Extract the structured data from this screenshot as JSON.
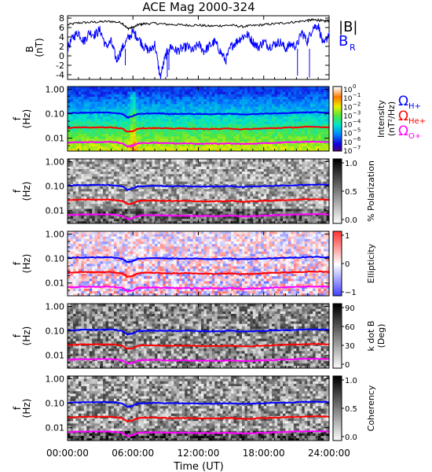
{
  "title": "ACE Mag 2000-324",
  "xlabel": "Time (UT)",
  "xticks": [
    "00:00:00",
    "06:00:00",
    "12:00:00",
    "18:00:00",
    "24:00:00"
  ],
  "colors": {
    "black": "#000000",
    "blue": "#0000ff",
    "red": "#ff0000",
    "magenta": "#ff00ff"
  },
  "chart_data": [
    {
      "type": "line",
      "panel": "field",
      "ylabel_main": "B",
      "ylabel_unit": "(nT)",
      "ylim": [
        -5,
        8.5
      ],
      "yticks": [
        "-4",
        "-2",
        "0",
        "2",
        "4",
        "6",
        "8"
      ],
      "xlim_hours": [
        0,
        24
      ],
      "legend": [
        "|B|",
        "B",
        "R"
      ],
      "series": [
        {
          "name": "|B|",
          "color": "#000000",
          "x": [
            0,
            1,
            2,
            3,
            4,
            5,
            5.5,
            6,
            6.5,
            7,
            8,
            9,
            10,
            11,
            12,
            13,
            14,
            15,
            16,
            17,
            18,
            19,
            20,
            21,
            22,
            22.5,
            23,
            23.5,
            24
          ],
          "y": [
            6.6,
            7.0,
            7.1,
            7.2,
            7.3,
            7.0,
            5.8,
            6.0,
            6.6,
            6.8,
            6.9,
            6.7,
            6.6,
            6.5,
            6.5,
            6.3,
            6.4,
            6.5,
            6.2,
            6.4,
            6.6,
            6.8,
            7.0,
            7.2,
            7.5,
            7.6,
            7.6,
            7.3,
            7.5
          ]
        },
        {
          "name": "B_R",
          "color": "#0000ff",
          "x": [
            0,
            0.5,
            1,
            1.5,
            2,
            2.5,
            3,
            3.5,
            4,
            4.5,
            5,
            5.5,
            6,
            6.5,
            7,
            7.5,
            8,
            8.5,
            9,
            9.5,
            10,
            10.5,
            11,
            11.5,
            12,
            12.5,
            13,
            13.5,
            14,
            14.5,
            15,
            15.5,
            16,
            16.5,
            17,
            17.5,
            18,
            18.5,
            19,
            19.5,
            20,
            20.5,
            21,
            21.5,
            22,
            22.5,
            23,
            23.5,
            24
          ],
          "y": [
            1.5,
            4,
            5,
            3,
            5,
            4.5,
            5.5,
            2,
            3,
            -1,
            1.5,
            3.5,
            5,
            3.8,
            2,
            1,
            2.5,
            -4.5,
            0,
            2,
            1,
            1.5,
            2,
            1,
            2.5,
            1,
            2,
            3,
            1,
            -1,
            2,
            3,
            4,
            4.5,
            3,
            1.8,
            3,
            2,
            2.5,
            3,
            1.5,
            2.5,
            2,
            5,
            3,
            6,
            6.5,
            2,
            5
          ]
        }
      ]
    },
    {
      "type": "heatmap",
      "panel": "intensity",
      "ylabel_main": "f",
      "ylabel_unit": "(Hz)",
      "yticks": [
        "1.00",
        "0.10",
        "0.01"
      ],
      "colorbar_label_1": "Intensity",
      "colorbar_label_2": "(nT²/Hz)",
      "colorbar_ticks_base": [
        "10",
        "10",
        "10",
        "10",
        "10",
        "10",
        "10",
        "10"
      ],
      "colorbar_ticks_exp": [
        "0",
        "−1",
        "−2",
        "−3",
        "−4",
        "−5",
        "−6",
        "−7"
      ],
      "legend": [
        {
          "text": "Ω",
          "sub": "H+",
          "color": "#0000ff"
        },
        {
          "text": "Ω",
          "sub": "He+",
          "color": "#ff0000"
        },
        {
          "text": "Ω",
          "sub": "O+",
          "color": "#ff00ff"
        }
      ]
    },
    {
      "type": "heatmap",
      "panel": "polarization",
      "ylabel_main": "f",
      "ylabel_unit": "(Hz)",
      "yticks": [
        "1.00",
        "0.10",
        "0.01"
      ],
      "colorbar_label_1": "% Polarization",
      "colorbar_ticks": [
        "1.0",
        "0.5",
        "0.0"
      ]
    },
    {
      "type": "heatmap",
      "panel": "ellipticity",
      "ylabel_main": "f",
      "ylabel_unit": "(Hz)",
      "yticks": [
        "1.00",
        "0.10",
        "0.01"
      ],
      "colorbar_label_1": "Ellipticity",
      "colorbar_ticks": [
        "1",
        "0",
        "−1"
      ]
    },
    {
      "type": "heatmap",
      "panel": "kdotb",
      "ylabel_main": "f",
      "ylabel_unit": "(Hz)",
      "yticks": [
        "1.00",
        "0.10",
        "0.01"
      ],
      "colorbar_label_1": "k dot B",
      "colorbar_label_2": "(Deg)",
      "colorbar_ticks": [
        "90",
        "60",
        "30",
        "0"
      ]
    },
    {
      "type": "heatmap",
      "panel": "coherency",
      "ylabel_main": "f",
      "ylabel_unit": "(Hz)",
      "yticks": [
        "1.00",
        "0.10",
        "0.01"
      ],
      "colorbar_label_1": "Coherency",
      "colorbar_ticks": [
        "1.0",
        "0.5",
        "0.0"
      ]
    },
    {
      "type": "line",
      "panel": "gyrofrequencies",
      "description_of_overlays": "ion cyclotron frequency traces drawn on all spectral panels",
      "x_hours": [
        0,
        1,
        2,
        3,
        4,
        5,
        5.5,
        6,
        6.5,
        7,
        8,
        9,
        10,
        11,
        12,
        13,
        14,
        15,
        16,
        17,
        18,
        19,
        20,
        21,
        22,
        23,
        24
      ],
      "series": [
        {
          "name": "ΩH+",
          "color": "#0000ff",
          "y_hz": [
            0.105,
            0.11,
            0.11,
            0.112,
            0.112,
            0.1,
            0.07,
            0.08,
            0.1,
            0.1,
            0.105,
            0.1,
            0.1,
            0.1,
            0.098,
            0.096,
            0.098,
            0.1,
            0.094,
            0.098,
            0.1,
            0.104,
            0.107,
            0.11,
            0.115,
            0.116,
            0.112
          ]
        },
        {
          "name": "ΩHe+",
          "color": "#ff0000",
          "y_hz": [
            0.026,
            0.028,
            0.028,
            0.028,
            0.028,
            0.025,
            0.018,
            0.02,
            0.025,
            0.026,
            0.026,
            0.025,
            0.025,
            0.025,
            0.024,
            0.024,
            0.024,
            0.025,
            0.023,
            0.024,
            0.025,
            0.026,
            0.027,
            0.028,
            0.029,
            0.029,
            0.028
          ]
        },
        {
          "name": "ΩO+",
          "color": "#ff00ff",
          "y_hz": [
            0.0066,
            0.007,
            0.007,
            0.007,
            0.007,
            0.0063,
            0.0045,
            0.005,
            0.0063,
            0.0064,
            0.0066,
            0.0063,
            0.0062,
            0.0062,
            0.006,
            0.006,
            0.006,
            0.0062,
            0.0058,
            0.006,
            0.0062,
            0.0065,
            0.0067,
            0.007,
            0.0072,
            0.0072,
            0.007
          ]
        }
      ]
    }
  ]
}
